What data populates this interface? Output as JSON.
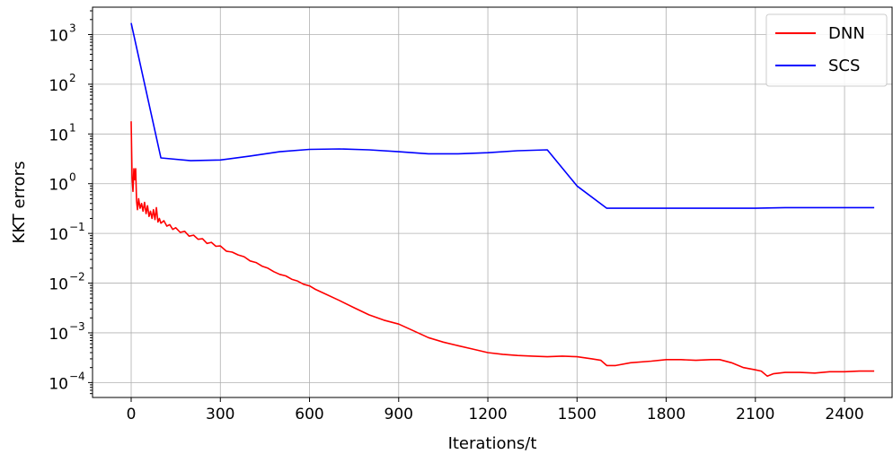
{
  "chart_data": {
    "type": "line",
    "title": "",
    "xlabel": "Iterations/t",
    "ylabel": "KKT errors",
    "xlim": [
      -130,
      2560
    ],
    "ylim_log10": [
      -4.3,
      3.55
    ],
    "y_scale": "log",
    "grid": true,
    "legend_position": "top-right",
    "x_ticks": [
      0,
      300,
      600,
      900,
      1200,
      1500,
      1800,
      2100,
      2400
    ],
    "y_ticks": [
      {
        "exp": 3,
        "base": "10",
        "sup": "3"
      },
      {
        "exp": 2,
        "base": "10",
        "sup": "2"
      },
      {
        "exp": 1,
        "base": "10",
        "sup": "1"
      },
      {
        "exp": 0,
        "base": "10",
        "sup": "0"
      },
      {
        "exp": -1,
        "base": "10",
        "sup": "−1"
      },
      {
        "exp": -2,
        "base": "10",
        "sup": "−2"
      },
      {
        "exp": -3,
        "base": "10",
        "sup": "−3"
      },
      {
        "exp": -4,
        "base": "10",
        "sup": "−4"
      }
    ],
    "series": [
      {
        "name": "DNN",
        "color": "#ff0000",
        "x": [
          0,
          3,
          6,
          9,
          12,
          15,
          18,
          21,
          25,
          30,
          35,
          40,
          45,
          50,
          55,
          60,
          65,
          70,
          75,
          80,
          85,
          90,
          95,
          100,
          110,
          120,
          130,
          140,
          150,
          165,
          180,
          195,
          210,
          225,
          240,
          255,
          270,
          285,
          300,
          320,
          340,
          360,
          380,
          400,
          420,
          440,
          460,
          480,
          500,
          520,
          540,
          560,
          580,
          600,
          620,
          650,
          700,
          750,
          800,
          850,
          900,
          950,
          1000,
          1050,
          1100,
          1150,
          1200,
          1250,
          1300,
          1350,
          1400,
          1450,
          1500,
          1550,
          1580,
          1600,
          1630,
          1680,
          1750,
          1800,
          1850,
          1900,
          1950,
          1980,
          2020,
          2060,
          2100,
          2120,
          2140,
          2160,
          2200,
          2250,
          2300,
          2350,
          2400,
          2450,
          2500
        ],
        "y": [
          18,
          1.3,
          0.7,
          2.0,
          1.2,
          2.0,
          0.45,
          0.3,
          0.5,
          0.32,
          0.4,
          0.28,
          0.42,
          0.25,
          0.36,
          0.22,
          0.28,
          0.2,
          0.3,
          0.19,
          0.33,
          0.17,
          0.2,
          0.16,
          0.18,
          0.14,
          0.15,
          0.12,
          0.13,
          0.105,
          0.11,
          0.088,
          0.092,
          0.076,
          0.078,
          0.063,
          0.066,
          0.055,
          0.056,
          0.044,
          0.042,
          0.037,
          0.034,
          0.028,
          0.026,
          0.022,
          0.02,
          0.017,
          0.015,
          0.014,
          0.012,
          0.011,
          0.0095,
          0.0088,
          0.0075,
          0.0062,
          0.0045,
          0.0032,
          0.0023,
          0.0018,
          0.0015,
          0.0011,
          0.0008,
          0.00065,
          0.00055,
          0.00047,
          0.0004,
          0.00037,
          0.00035,
          0.00034,
          0.00033,
          0.00034,
          0.00033,
          0.0003,
          0.00028,
          0.00022,
          0.00022,
          0.00025,
          0.00027,
          0.00029,
          0.00029,
          0.00028,
          0.00029,
          0.00029,
          0.00025,
          0.0002,
          0.00018,
          0.00017,
          0.000135,
          0.00015,
          0.00016,
          0.00016,
          0.000155,
          0.000165,
          0.000165,
          0.00017,
          0.00017
        ]
      },
      {
        "name": "SCS",
        "color": "#0000ff",
        "x": [
          0,
          100,
          200,
          300,
          400,
          500,
          600,
          700,
          800,
          900,
          1000,
          1100,
          1200,
          1300,
          1400,
          1500,
          1600,
          1700,
          1800,
          1900,
          2000,
          2100,
          2200,
          2300,
          2400,
          2500
        ],
        "y": [
          1700,
          3.3,
          2.9,
          3.0,
          3.6,
          4.4,
          4.9,
          5.0,
          4.8,
          4.4,
          4.0,
          4.0,
          4.2,
          4.6,
          4.8,
          0.9,
          0.32,
          0.32,
          0.32,
          0.32,
          0.32,
          0.32,
          0.33,
          0.33,
          0.33,
          0.33
        ]
      }
    ]
  }
}
